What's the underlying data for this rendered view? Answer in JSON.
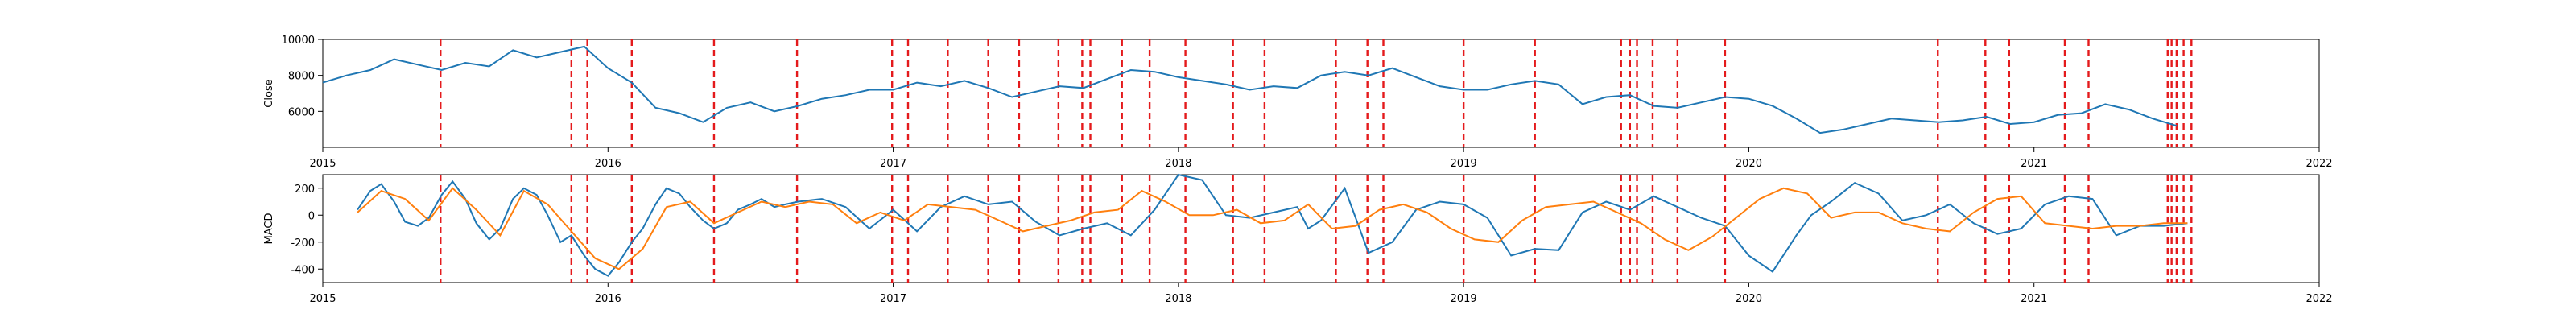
{
  "chart_data": [
    {
      "type": "line",
      "ylabel": "Close",
      "xlim": [
        "2015-01-01",
        "2022-01-01"
      ],
      "ylim": [
        4000,
        10000
      ],
      "xticks": [
        "2015",
        "2016",
        "2017",
        "2018",
        "2019",
        "2020",
        "2021",
        "2022"
      ],
      "yticks": [
        6000,
        8000,
        10000
      ],
      "colors": {
        "close": "#1f77b4",
        "events": "#e41a1c"
      },
      "series": [
        {
          "x": [
            "2015-01-01",
            "2015-02-01",
            "2015-03-01",
            "2015-04-01",
            "2015-05-01",
            "2015-06-01",
            "2015-07-01",
            "2015-08-01",
            "2015-09-01",
            "2015-10-01",
            "2015-11-01",
            "2015-12-01",
            "2016-01-01",
            "2016-02-01",
            "2016-03-01",
            "2016-04-01",
            "2016-05-01",
            "2016-06-01",
            "2016-07-01",
            "2016-08-01",
            "2016-09-01",
            "2016-10-01",
            "2016-11-01",
            "2016-12-01",
            "2017-01-01",
            "2017-02-01",
            "2017-03-01",
            "2017-04-01",
            "2017-05-01",
            "2017-06-01",
            "2017-07-01",
            "2017-08-01",
            "2017-09-01",
            "2017-10-01",
            "2017-11-01",
            "2017-12-01",
            "2018-01-01",
            "2018-02-01",
            "2018-03-01",
            "2018-04-01",
            "2018-05-01",
            "2018-06-01",
            "2018-07-01",
            "2018-08-01",
            "2018-09-01",
            "2018-10-01",
            "2018-11-01",
            "2018-12-01",
            "2019-01-01",
            "2019-02-01",
            "2019-03-01",
            "2019-04-01",
            "2019-05-01",
            "2019-06-01",
            "2019-07-01",
            "2019-08-01",
            "2019-09-01",
            "2019-10-01",
            "2019-11-01",
            "2019-12-01",
            "2020-01-01",
            "2020-02-01",
            "2020-03-01",
            "2020-04-01",
            "2020-05-01",
            "2020-06-01",
            "2020-07-01",
            "2020-08-01",
            "2020-09-01",
            "2020-10-01",
            "2020-11-01",
            "2020-12-01",
            "2021-01-01",
            "2021-02-01",
            "2021-03-01",
            "2021-04-01",
            "2021-05-01",
            "2021-06-01",
            "2021-07-01"
          ],
          "y": [
            7600,
            8000,
            8300,
            8900,
            8600,
            8300,
            8700,
            8500,
            9400,
            9000,
            9300,
            9600,
            8400,
            7600,
            6200,
            5900,
            5400,
            6200,
            6500,
            6000,
            6300,
            6700,
            6900,
            7200,
            7200,
            7600,
            7400,
            7700,
            7300,
            6800,
            7100,
            7400,
            7300,
            7800,
            8300,
            8200,
            7900,
            7700,
            7500,
            7200,
            7400,
            7300,
            8000,
            8200,
            8000,
            8400,
            7900,
            7400,
            7200,
            7200,
            7500,
            7700,
            7500,
            6400,
            6800,
            6900,
            6300,
            6200,
            6500,
            6800,
            6700,
            6300,
            5600,
            4800,
            5000,
            5300,
            5600,
            5500,
            5400,
            5500,
            5700,
            5300,
            5400,
            5800,
            5900,
            6400,
            6100,
            5600,
            5200
          ]
        }
      ]
    },
    {
      "type": "line",
      "ylabel": "MACD",
      "xlim": [
        "2015-01-01",
        "2022-01-01"
      ],
      "ylim": [
        -500,
        300
      ],
      "xticks": [
        "2015",
        "2016",
        "2017",
        "2018",
        "2019",
        "2020",
        "2021",
        "2022"
      ],
      "yticks": [
        -400,
        -200,
        0,
        200
      ],
      "colors": {
        "macd": "#1f77b4",
        "signal": "#ff7f0e",
        "events": "#e41a1c"
      },
      "series": [
        {
          "x": [
            "2015-02-15",
            "2015-03-01",
            "2015-03-15",
            "2015-04-01",
            "2015-04-15",
            "2015-05-01",
            "2015-05-15",
            "2015-06-01",
            "2015-06-15",
            "2015-07-01",
            "2015-07-15",
            "2015-08-01",
            "2015-08-15",
            "2015-09-01",
            "2015-09-15",
            "2015-10-01",
            "2015-10-15",
            "2015-11-01",
            "2015-11-15",
            "2015-12-01",
            "2015-12-15",
            "2016-01-01",
            "2016-01-15",
            "2016-02-01",
            "2016-02-15",
            "2016-03-01",
            "2016-03-15",
            "2016-04-01",
            "2016-04-15",
            "2016-05-01",
            "2016-05-15",
            "2016-06-01",
            "2016-06-15",
            "2016-07-01",
            "2016-07-15",
            "2016-08-01",
            "2016-08-15",
            "2016-09-01",
            "2016-10-01",
            "2016-11-01",
            "2016-12-01",
            "2017-01-01",
            "2017-02-01",
            "2017-03-01",
            "2017-04-01",
            "2017-05-01",
            "2017-06-01",
            "2017-07-01",
            "2017-08-01",
            "2017-09-01",
            "2017-10-01",
            "2017-11-01",
            "2017-12-01",
            "2018-01-01",
            "2018-02-01",
            "2018-03-01",
            "2018-04-01",
            "2018-05-01",
            "2018-06-01",
            "2018-06-15",
            "2018-07-01",
            "2018-08-01",
            "2018-09-01",
            "2018-10-01",
            "2018-11-01",
            "2018-12-01",
            "2019-01-01",
            "2019-02-01",
            "2019-03-01",
            "2019-04-01",
            "2019-05-01",
            "2019-06-01",
            "2019-07-01",
            "2019-08-01",
            "2019-09-01",
            "2019-10-01",
            "2019-11-01",
            "2019-12-01",
            "2020-01-01",
            "2020-02-01",
            "2020-03-01",
            "2020-03-20",
            "2020-04-15",
            "2020-05-15",
            "2020-06-15",
            "2020-07-15",
            "2020-08-15",
            "2020-09-15",
            "2020-10-15",
            "2020-11-15",
            "2020-12-15",
            "2021-01-15",
            "2021-02-15",
            "2021-03-15",
            "2021-04-15",
            "2021-05-15",
            "2021-06-15",
            "2021-07-15"
          ],
          "y": [
            40,
            180,
            230,
            100,
            -50,
            -80,
            -20,
            150,
            250,
            120,
            -60,
            -180,
            -100,
            120,
            200,
            150,
            0,
            -200,
            -150,
            -300,
            -400,
            -450,
            -350,
            -200,
            -100,
            80,
            200,
            160,
            60,
            -40,
            -100,
            -60,
            40,
            80,
            120,
            60,
            80,
            100,
            120,
            60,
            -100,
            40,
            -120,
            60,
            140,
            80,
            100,
            -50,
            -150,
            -100,
            -60,
            -150,
            40,
            300,
            260,
            0,
            -20,
            20,
            60,
            -100,
            -40,
            200,
            -280,
            -200,
            40,
            100,
            80,
            -20,
            -300,
            -250,
            -260,
            20,
            100,
            40,
            140,
            60,
            -20,
            -80,
            -300,
            -420,
            -150,
            0,
            100,
            240,
            160,
            -40,
            0,
            80,
            -60,
            -140,
            -100,
            80,
            140,
            120,
            -150,
            -80,
            -80,
            -60
          ]
        },
        {
          "x": [
            "2015-02-15",
            "2015-03-15",
            "2015-04-15",
            "2015-05-15",
            "2015-06-15",
            "2015-07-15",
            "2015-08-15",
            "2015-09-15",
            "2015-10-15",
            "2015-11-15",
            "2015-12-15",
            "2016-01-15",
            "2016-02-15",
            "2016-03-15",
            "2016-04-15",
            "2016-05-15",
            "2016-06-15",
            "2016-07-15",
            "2016-08-15",
            "2016-09-15",
            "2016-10-15",
            "2016-11-15",
            "2016-12-15",
            "2017-01-15",
            "2017-02-15",
            "2017-03-15",
            "2017-04-15",
            "2017-05-15",
            "2017-06-15",
            "2017-07-15",
            "2017-08-15",
            "2017-09-15",
            "2017-10-15",
            "2017-11-15",
            "2017-12-15",
            "2018-01-15",
            "2018-02-15",
            "2018-03-15",
            "2018-04-15",
            "2018-05-15",
            "2018-06-15",
            "2018-07-15",
            "2018-08-15",
            "2018-09-15",
            "2018-10-15",
            "2018-11-15",
            "2018-12-15",
            "2019-01-15",
            "2019-02-15",
            "2019-03-15",
            "2019-04-15",
            "2019-05-15",
            "2019-06-15",
            "2019-07-15",
            "2019-08-15",
            "2019-09-15",
            "2019-10-15",
            "2019-11-15",
            "2019-12-15",
            "2020-01-15",
            "2020-02-15",
            "2020-03-15",
            "2020-04-15",
            "2020-05-15",
            "2020-06-15",
            "2020-07-15",
            "2020-08-15",
            "2020-09-15",
            "2020-10-15",
            "2020-11-15",
            "2020-12-15",
            "2021-01-15",
            "2021-02-15",
            "2021-03-15",
            "2021-04-15",
            "2021-05-15",
            "2021-06-15",
            "2021-07-15"
          ],
          "y": [
            20,
            180,
            120,
            -40,
            200,
            40,
            -150,
            180,
            80,
            -120,
            -320,
            -400,
            -250,
            60,
            100,
            -60,
            20,
            100,
            60,
            100,
            80,
            -60,
            20,
            -40,
            80,
            60,
            40,
            -40,
            -120,
            -80,
            -40,
            20,
            40,
            180,
            100,
            0,
            0,
            40,
            -60,
            -40,
            80,
            -100,
            -80,
            40,
            80,
            20,
            -100,
            -180,
            -200,
            -40,
            60,
            80,
            100,
            20,
            -60,
            -180,
            -260,
            -160,
            -20,
            120,
            200,
            160,
            -20,
            20,
            20,
            -60,
            -100,
            -120,
            20,
            120,
            140,
            -60,
            -80,
            -100,
            -80,
            -80,
            -60,
            -60
          ]
        }
      ]
    }
  ],
  "events": [
    "2015-05-30",
    "2015-11-15",
    "2015-12-05",
    "2016-02-01",
    "2016-05-15",
    "2016-08-30",
    "2016-12-30",
    "2017-01-20",
    "2017-03-10",
    "2017-05-01",
    "2017-06-10",
    "2017-07-30",
    "2017-08-30",
    "2017-09-10",
    "2017-10-20",
    "2017-11-25",
    "2018-01-10",
    "2018-03-10",
    "2018-04-20",
    "2018-07-20",
    "2018-08-30",
    "2018-09-20",
    "2019-01-01",
    "2019-04-01",
    "2019-07-20",
    "2019-08-01",
    "2019-08-10",
    "2019-08-30",
    "2019-10-01",
    "2019-12-01",
    "2020-08-30",
    "2020-10-30",
    "2020-11-30",
    "2021-02-10",
    "2021-03-10",
    "2021-06-20",
    "2021-06-25",
    "2021-07-01",
    "2021-07-10",
    "2021-07-20"
  ],
  "notes": "Bottom panel series: first is MACD (blue), second is signal (orange). Red dashed vertical lines mark events in both panels."
}
